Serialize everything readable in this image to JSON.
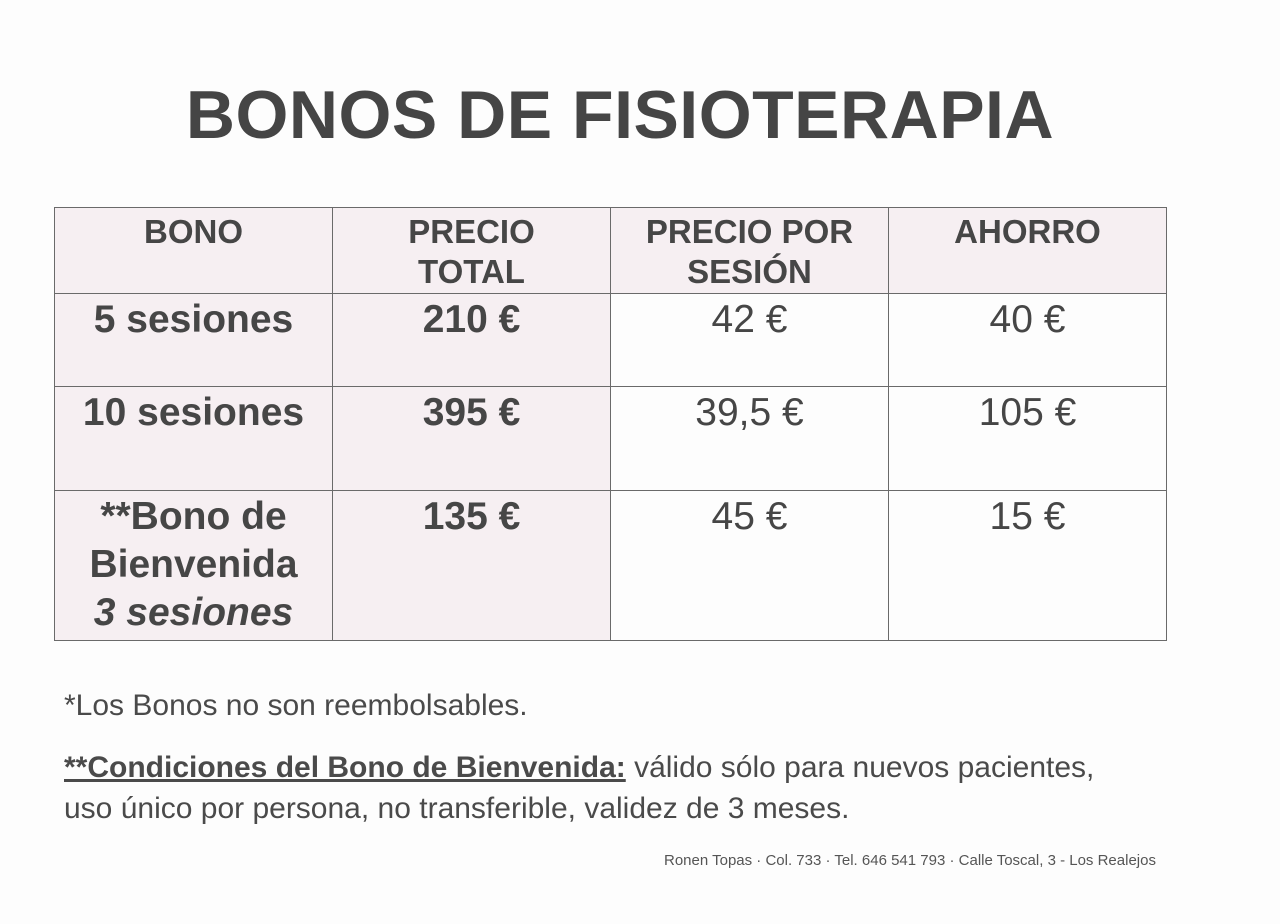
{
  "title": "BONOS DE FISIOTERAPIA",
  "table": {
    "headers": [
      "BONO",
      "PRECIO TOTAL",
      "PRECIO POR SESIÓN",
      "AHORRO"
    ],
    "rows": [
      {
        "bono": "5 sesiones",
        "total": "210 €",
        "per_session": "42 €",
        "saving": "40 €"
      },
      {
        "bono": "10 sesiones",
        "total": "395 €",
        "per_session": "39,5 €",
        "saving": "105 €"
      },
      {
        "bono": "**Bono de Bienvenida",
        "bono_sub": "3 sesiones",
        "total": "135 €",
        "per_session": "45 €",
        "saving": "15 €"
      }
    ],
    "header_tint": "#f6eff2"
  },
  "notes": {
    "refund": "*Los Bonos no son reembolsables.",
    "conditions_label": "**Condiciones del Bono de Bienvenida:",
    "conditions_text": " válido sólo para nuevos pacientes, uso único por persona, no transferible, validez de 3 meses."
  },
  "footer": "Ronen Topas · Col. 733 · Tel. 646 541 793 · Calle Toscal, 3 - Los Realejos"
}
